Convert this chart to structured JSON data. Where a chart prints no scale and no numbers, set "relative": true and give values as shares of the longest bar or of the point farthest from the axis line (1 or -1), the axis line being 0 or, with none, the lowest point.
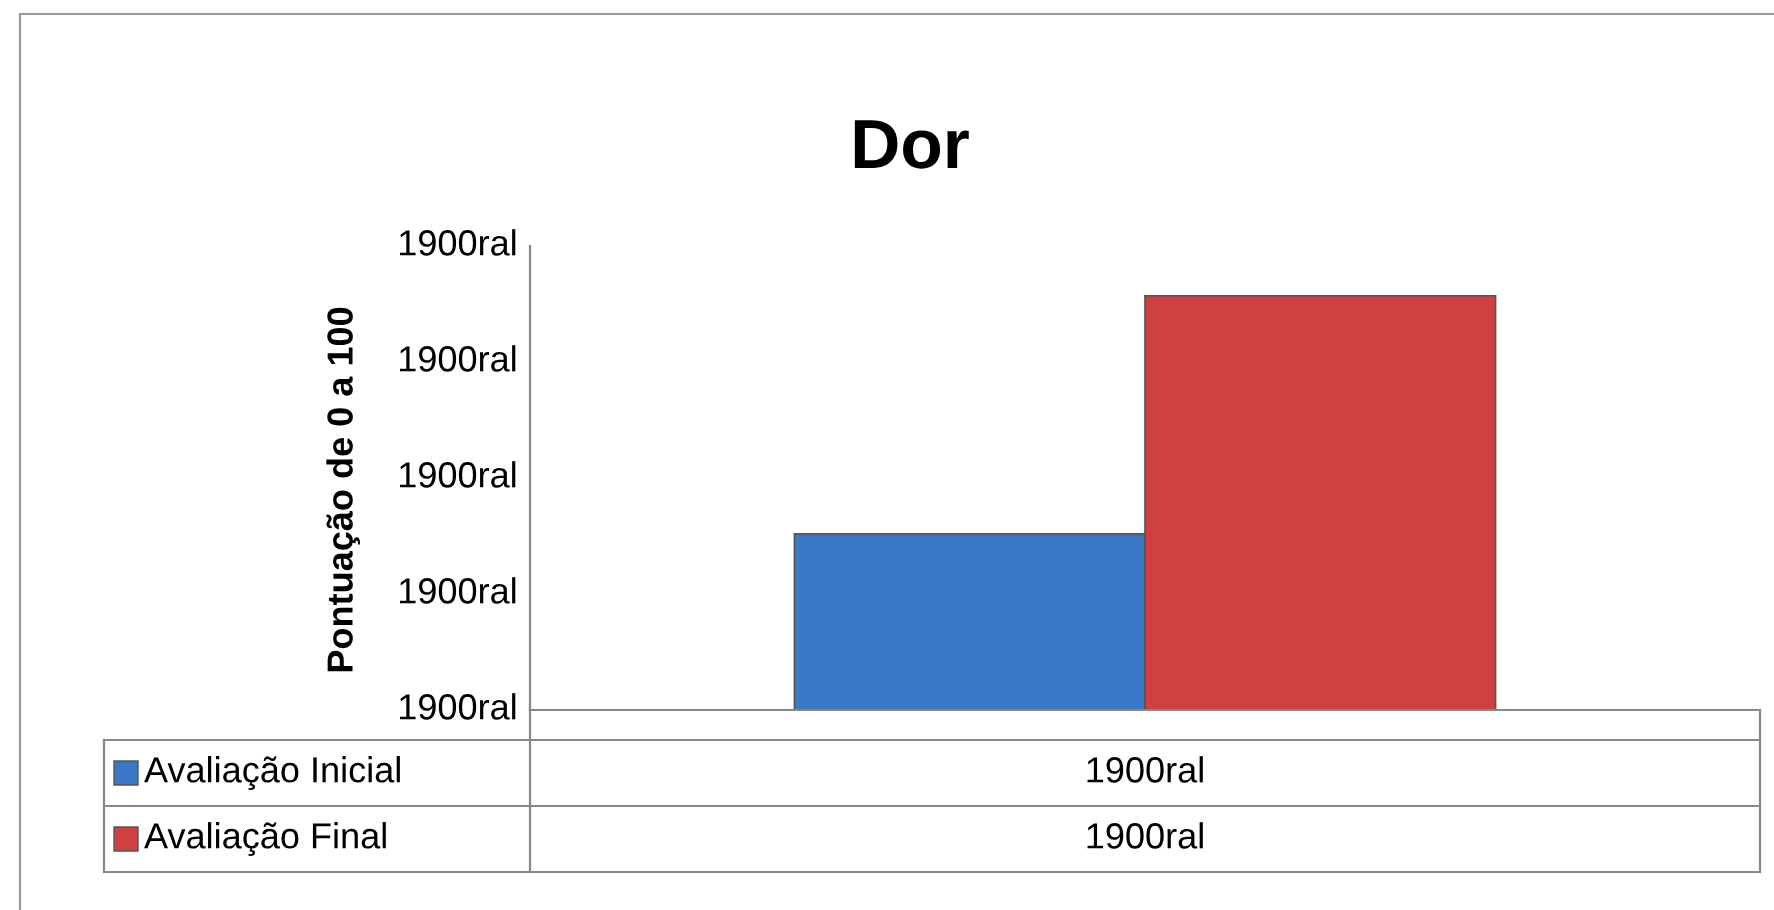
{
  "chart_data": {
    "type": "bar",
    "title": "Dor",
    "ylabel": "Pontuação de 0 a 100",
    "relative": true,
    "categories": [
      null
    ],
    "series": [
      {
        "name": "Avaliação Inicial",
        "color": "#3c78c8",
        "values": [
          0.425
        ]
      },
      {
        "name": "Avaliação Final",
        "color": "#d04040",
        "values": [
          1
        ]
      }
    ],
    "annotations": [
      "1900ral",
      "1900ral",
      "1900ral",
      "1900ral",
      "1900ral",
      "1900ral",
      "1900ral"
    ],
    "legend": "bottom"
  }
}
